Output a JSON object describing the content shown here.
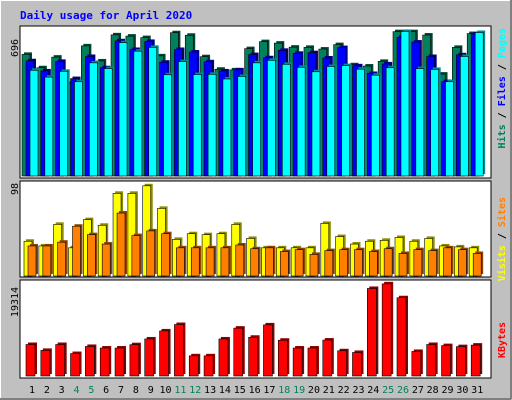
{
  "chart_data": [
    {
      "type": "bar",
      "panel": "top",
      "title": "Daily usage for April 2020",
      "categories": [
        "1",
        "2",
        "3",
        "4",
        "5",
        "6",
        "7",
        "8",
        "9",
        "10",
        "11",
        "12",
        "13",
        "14",
        "15",
        "16",
        "17",
        "18",
        "19",
        "20",
        "21",
        "22",
        "23",
        "24",
        "25",
        "26",
        "27",
        "28",
        "29",
        "30",
        "31"
      ],
      "weekend_days": [
        "4",
        "5",
        "11",
        "12",
        "18",
        "19",
        "25",
        "26"
      ],
      "ylim_label": "696",
      "axis_labels": [
        "Pages",
        "Files",
        "Hits"
      ],
      "series": [
        {
          "name": "Hits",
          "color": "#00805c",
          "values": [
            573,
            510,
            560,
            436,
            613,
            542,
            665,
            659,
            652,
            566,
            675,
            663,
            562,
            503,
            500,
            600,
            633,
            626,
            607,
            606,
            598,
            619,
            524,
            518,
            540,
            680,
            680,
            664,
            480,
            606,
            671
          ]
        },
        {
          "name": "Files",
          "color": "#0000ff",
          "values": [
            543,
            495,
            540,
            459,
            563,
            510,
            637,
            596,
            634,
            536,
            596,
            584,
            538,
            495,
            500,
            572,
            557,
            592,
            578,
            581,
            556,
            605,
            519,
            483,
            528,
            653,
            631,
            563,
            445,
            571,
            669
          ]
        },
        {
          "name": "Pages",
          "color": "#00ffff",
          "values": [
            498,
            466,
            493,
            444,
            533,
            506,
            628,
            588,
            606,
            477,
            539,
            478,
            479,
            457,
            469,
            533,
            545,
            526,
            512,
            491,
            516,
            520,
            503,
            475,
            510,
            681,
            506,
            502,
            444,
            563,
            676
          ]
        }
      ]
    },
    {
      "type": "bar",
      "panel": "middle",
      "categories": [
        "1",
        "2",
        "3",
        "4",
        "5",
        "6",
        "7",
        "8",
        "9",
        "10",
        "11",
        "12",
        "13",
        "14",
        "15",
        "16",
        "17",
        "18",
        "19",
        "20",
        "21",
        "22",
        "23",
        "24",
        "25",
        "26",
        "27",
        "28",
        "29",
        "30",
        "31"
      ],
      "ylim_label": "98",
      "axis_labels": [
        "Sites",
        "Visits"
      ],
      "series": [
        {
          "name": "Visits",
          "color": "#ffff00",
          "values": [
            37,
            32,
            55,
            30,
            60,
            54,
            88,
            88,
            96,
            72,
            39,
            45,
            44,
            45,
            55,
            40,
            30,
            30,
            30,
            30,
            56,
            42,
            34,
            37,
            38,
            41,
            37,
            40,
            32,
            31,
            30
          ]
        },
        {
          "name": "Sites",
          "color": "#ff8000",
          "values": [
            32,
            32,
            36,
            53,
            44,
            34,
            67,
            43,
            48,
            45,
            30,
            30,
            30,
            30,
            33,
            29,
            30,
            26,
            28,
            23,
            27,
            28,
            28,
            26,
            29,
            24,
            28,
            27,
            30,
            28,
            24
          ]
        }
      ]
    },
    {
      "type": "bar",
      "panel": "bottom",
      "categories": [
        "1",
        "2",
        "3",
        "4",
        "5",
        "6",
        "7",
        "8",
        "9",
        "10",
        "11",
        "12",
        "13",
        "14",
        "15",
        "16",
        "17",
        "18",
        "19",
        "20",
        "21",
        "22",
        "23",
        "24",
        "25",
        "26",
        "27",
        "28",
        "29",
        "30",
        "31"
      ],
      "ylim_label": "19314",
      "axis_labels": [
        "KBytes"
      ],
      "series": [
        {
          "name": "KBytes",
          "color": "#ff0000",
          "values": [
            6120,
            4972,
            6120,
            4360,
            5738,
            5432,
            5432,
            6081,
            7195,
            8756,
            9999,
            3920,
            3920,
            7195,
            9295,
            7524,
            9928,
            6950,
            5432,
            5432,
            6980,
            4900,
            4572,
            17000,
            17900,
            15200,
            4770,
            6120,
            5900,
            5700,
            6000
          ]
        }
      ]
    }
  ],
  "legend_colors": {
    "Hits": "#00805c",
    "Files": "#0000ff",
    "Pages": "#00ffff",
    "Visits": "#ffff00",
    "Sites": "#ff8000",
    "KBytes": "#ff0000"
  },
  "theme": {
    "frame_bg": "#c0c0c0",
    "panel_bg": "#ffffff",
    "title_color": "#0000ff",
    "weekend_label_color": "#00805c"
  }
}
